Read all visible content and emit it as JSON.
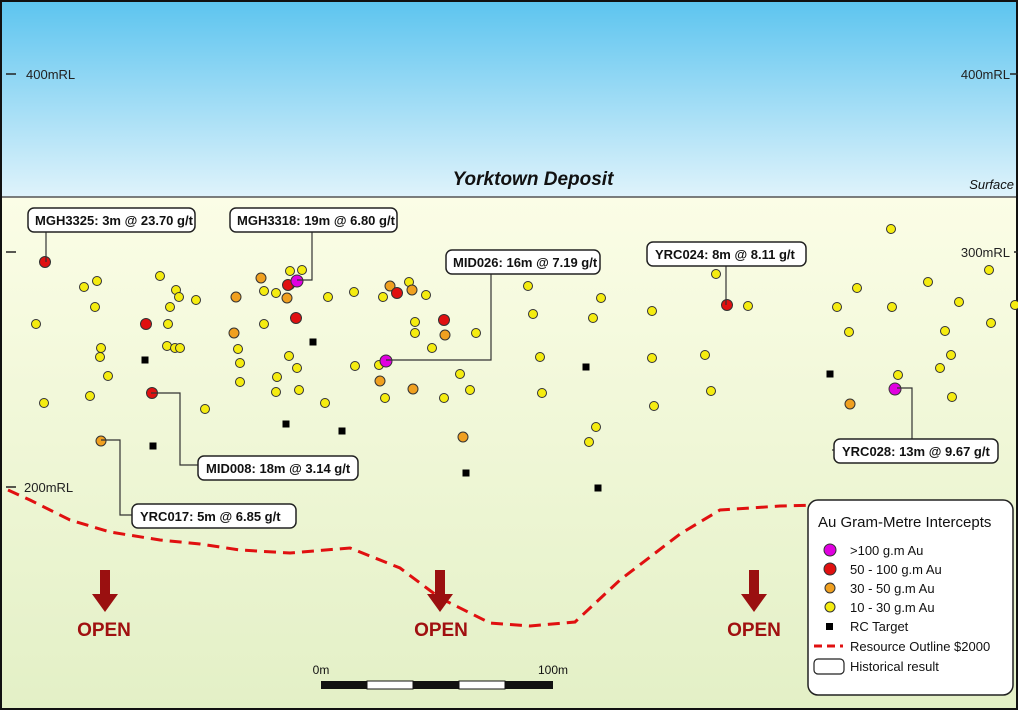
{
  "section_title": "Yorktown Deposit",
  "surface_label": "Surface",
  "levels": {
    "level_400_left": "400mRL",
    "level_400_right": "400mRL",
    "level_300_right": "300mRL",
    "level_200_left": "200mRL"
  },
  "callouts": {
    "mgh3325": "MGH3325: 3m @ 23.70 g/t",
    "mgh3318": "MGH3318: 19m @ 6.80 g/t",
    "mid026": "MID026: 16m @ 7.19 g/t",
    "yrc024": "YRC024: 8m @ 8.11 g/t",
    "mid008": "MID008: 18m @ 3.14 g/t",
    "yrc017": "YRC017: 5m @ 6.85 g/t",
    "yrc028": "YRC028: 13m @ 9.67 g/t"
  },
  "open_labels": {
    "left": "OPEN",
    "middle": "OPEN",
    "right": "OPEN"
  },
  "scale_bar": {
    "start_label": "0m",
    "end_label": "100m"
  },
  "legend": {
    "title": "Au Gram-Metre Intercepts",
    "items": {
      "gt100": ">100 g.m Au",
      "r50_100": "50 - 100 g.m Au",
      "r30_50": "30 - 50 g.m Au",
      "r10_30": "10 - 30 g.m Au",
      "rc_target": "RC Target",
      "resource_outline": "Resource Outline $2000",
      "historical": "Historical result"
    }
  },
  "colors": {
    "sky_top": "#5cc4ef",
    "sky_bottom": "#dff3fb",
    "ground_top": "#fbfde6",
    "ground_bottom": "#e3f0c6",
    "gt100": "#e000e0",
    "r50_100": "#e01010",
    "r30_50": "#f0a020",
    "r10_30": "#f5ec10",
    "rc_target": "#000000",
    "resource_outline": "#e01010",
    "open_arrow": "#9a1010"
  },
  "icons": {
    "rc_target": "square-marker-icon",
    "open": "down-arrow-icon"
  }
}
